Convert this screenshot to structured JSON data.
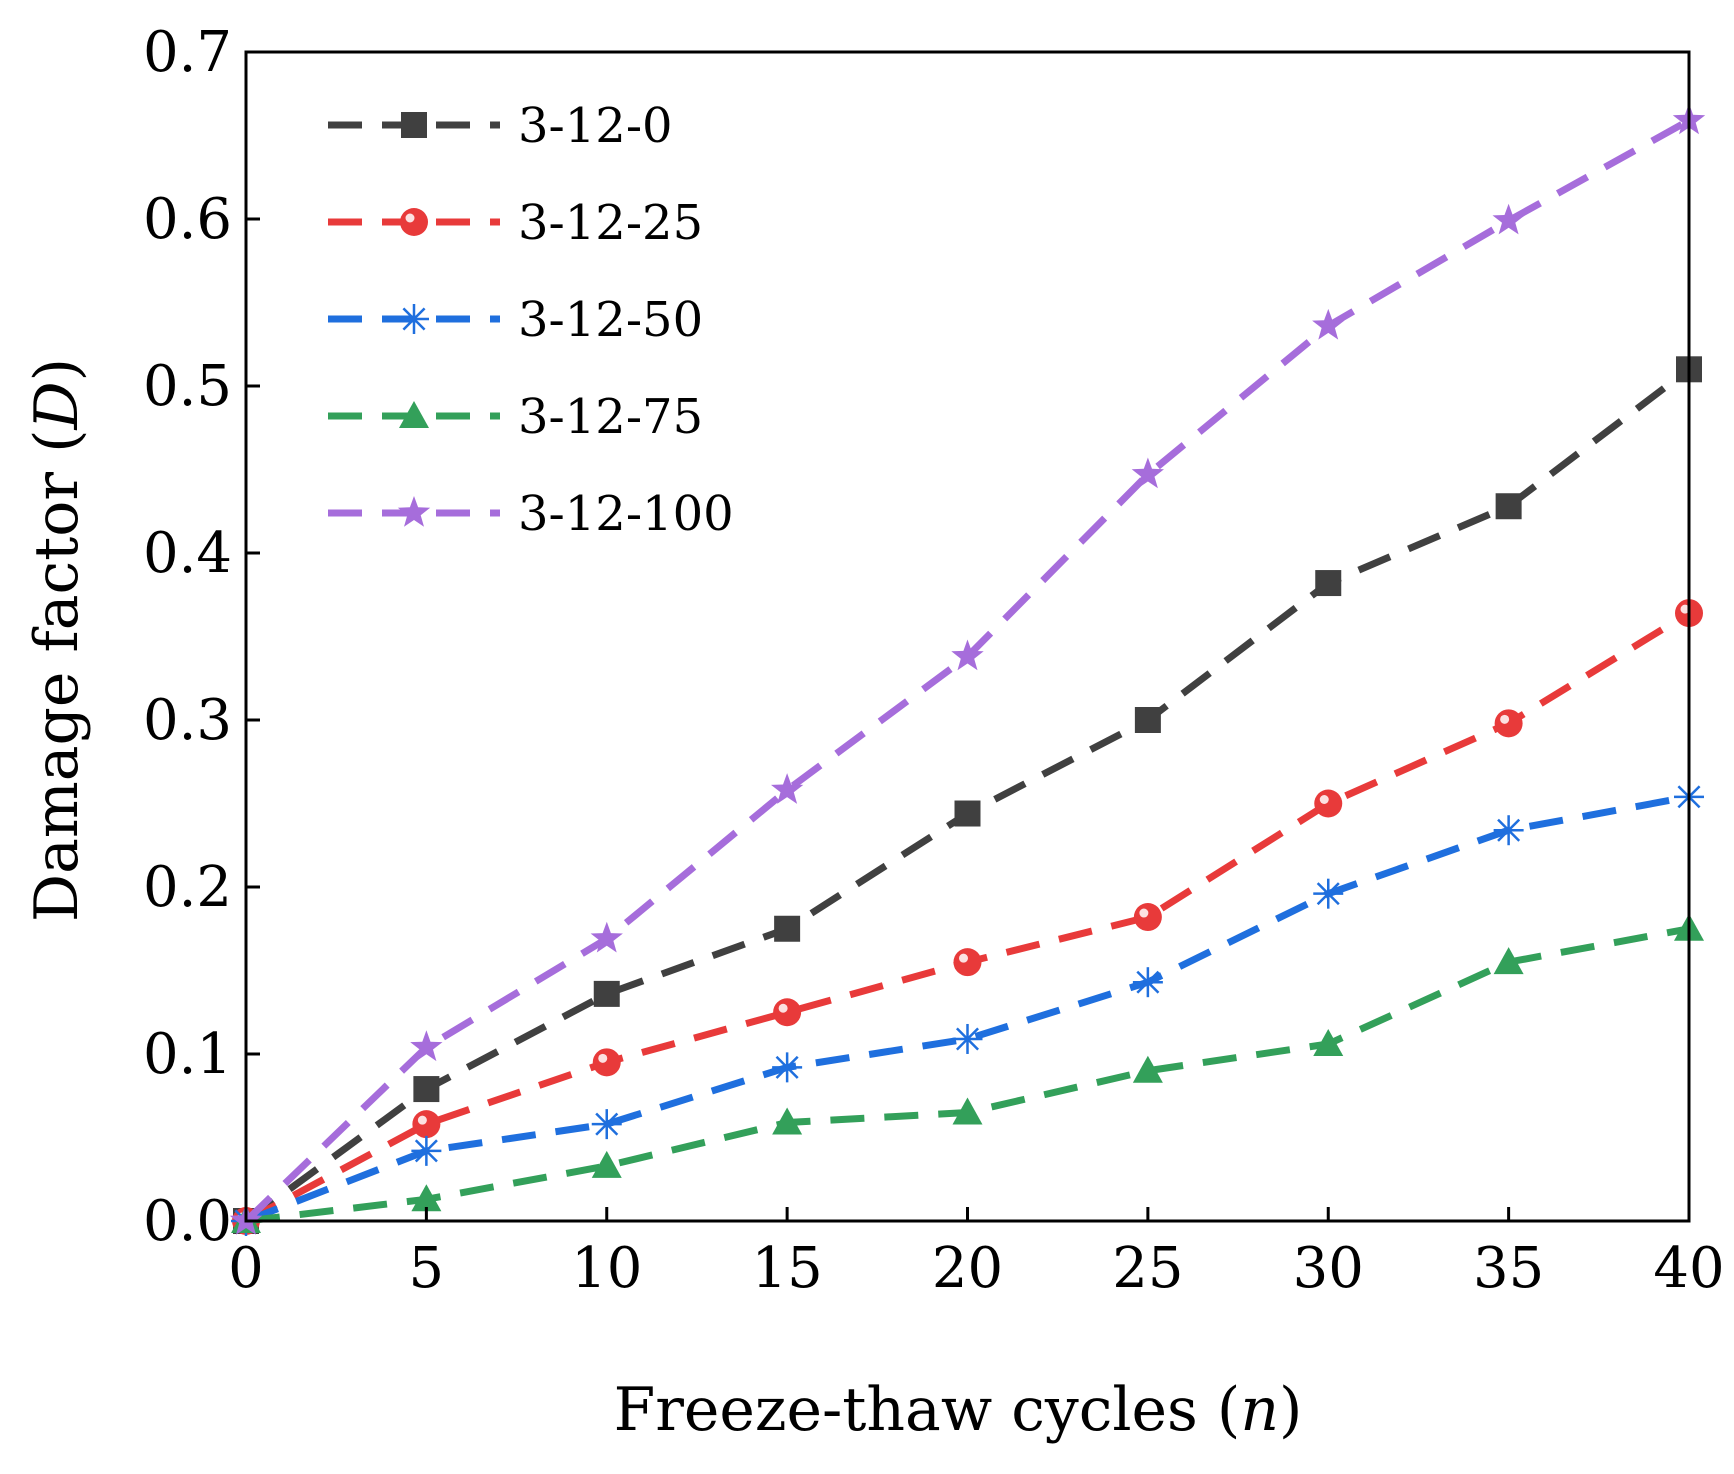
{
  "chart_data": {
    "type": "line",
    "title": "",
    "xlabel": "Freeze-thaw cycles (",
    "xlabel_var": "n",
    "xlabel_end": ")",
    "ylabel": "Damage factor (",
    "ylabel_var": "D",
    "ylabel_end": ")",
    "xlim": [
      0,
      40
    ],
    "ylim": [
      0,
      0.7
    ],
    "xticks": [
      "0",
      "5",
      "10",
      "15",
      "20",
      "25",
      "30",
      "35",
      "40"
    ],
    "yticks": [
      "0.0",
      "0.1",
      "0.2",
      "0.3",
      "0.4",
      "0.5",
      "0.6",
      "0.7"
    ],
    "x": [
      0,
      5,
      10,
      15,
      20,
      25,
      30,
      35,
      40
    ],
    "legend_position": "top-left",
    "grid": false,
    "series": [
      {
        "name": "3-12-0",
        "color": "#404040",
        "marker": "square",
        "values": [
          0,
          0.079,
          0.136,
          0.175,
          0.244,
          0.3,
          0.382,
          0.428,
          0.51
        ]
      },
      {
        "name": "3-12-25",
        "color": "#e83a3a",
        "marker": "circle",
        "values": [
          0,
          0.058,
          0.095,
          0.125,
          0.155,
          0.182,
          0.25,
          0.298,
          0.364
        ]
      },
      {
        "name": "3-12-50",
        "color": "#1f6fde",
        "marker": "asterisk",
        "values": [
          0,
          0.042,
          0.058,
          0.092,
          0.109,
          0.143,
          0.196,
          0.234,
          0.254
        ]
      },
      {
        "name": "3-12-75",
        "color": "#33a05a",
        "marker": "triangle",
        "values": [
          0,
          0.013,
          0.033,
          0.059,
          0.065,
          0.09,
          0.106,
          0.155,
          0.175
        ]
      },
      {
        "name": "3-12-100",
        "color": "#a66ddb",
        "marker": "star",
        "values": [
          0,
          0.104,
          0.169,
          0.258,
          0.338,
          0.447,
          0.536,
          0.599,
          0.659
        ]
      }
    ]
  }
}
